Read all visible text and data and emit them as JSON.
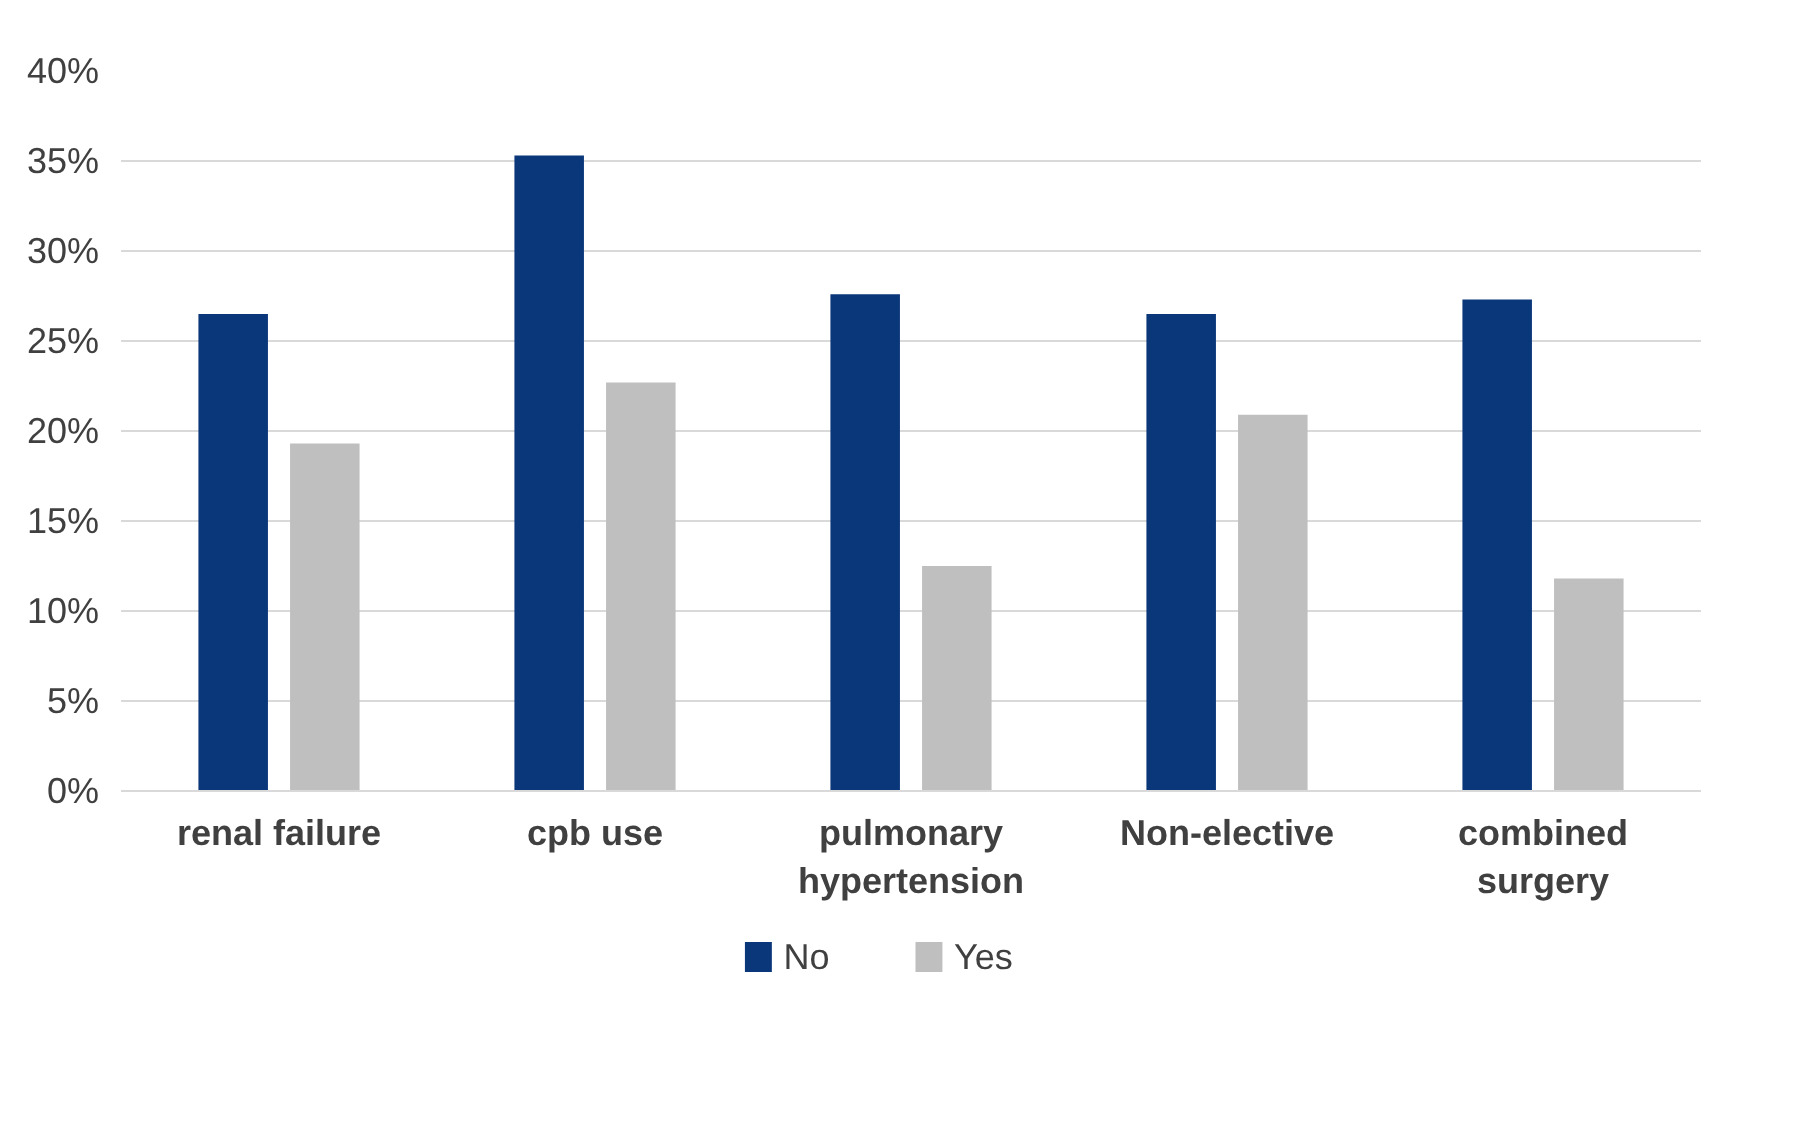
{
  "chart_data": {
    "type": "bar",
    "categories": [
      "renal failure",
      "cpb use",
      "pulmonary\nhypertension",
      "Non-elective",
      "combined\nsurgery"
    ],
    "series": [
      {
        "name": "No",
        "color": "#0a367a",
        "values": [
          26.5,
          35.3,
          27.6,
          26.5,
          27.3
        ]
      },
      {
        "name": "Yes",
        "color": "#bfbfbf",
        "values": [
          19.3,
          22.7,
          12.5,
          20.9,
          11.8
        ]
      }
    ],
    "ylim": [
      0,
      40
    ],
    "yticks": [
      {
        "value": 0,
        "label": "0%"
      },
      {
        "value": 5,
        "label": "5%"
      },
      {
        "value": 10,
        "label": "10%"
      },
      {
        "value": 15,
        "label": "15%"
      },
      {
        "value": 20,
        "label": "20%"
      },
      {
        "value": 25,
        "label": "25%"
      },
      {
        "value": 30,
        "label": "30%"
      },
      {
        "value": 35,
        "label": "35%"
      },
      {
        "value": 40,
        "label": "40%"
      }
    ],
    "grid": "y",
    "legend": "bottom"
  }
}
